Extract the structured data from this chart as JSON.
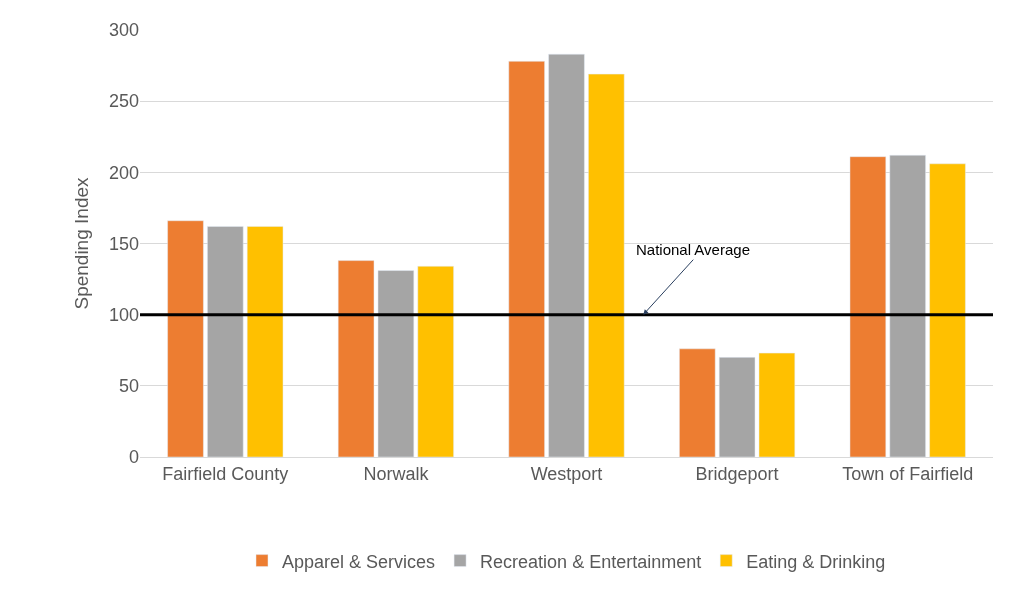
{
  "chart_data": {
    "type": "bar",
    "ylabel": "Spending Index",
    "categories": [
      "Fairfield County",
      "Norwalk",
      "Westport",
      "Bridgeport",
      "Town of Fairfield"
    ],
    "series": [
      {
        "name": "Apparel & Services",
        "color": "#ed7d31",
        "values": [
          166,
          138,
          278,
          76,
          211
        ]
      },
      {
        "name": "Recreation & Entertainment",
        "color": "#a5a5a5",
        "values": [
          162,
          131,
          283,
          70,
          212
        ]
      },
      {
        "name": "Eating & Drinking",
        "color": "#ffc000",
        "values": [
          162,
          134,
          269,
          73,
          206
        ]
      }
    ],
    "ylim": [
      0,
      300
    ],
    "yticks": [
      0,
      50,
      100,
      150,
      200,
      250,
      300
    ],
    "grid": "y",
    "legend": "bottom",
    "ref_lines": [
      {
        "axis": "y",
        "value": 100,
        "label": "National Average",
        "color": "#000000"
      }
    ]
  }
}
